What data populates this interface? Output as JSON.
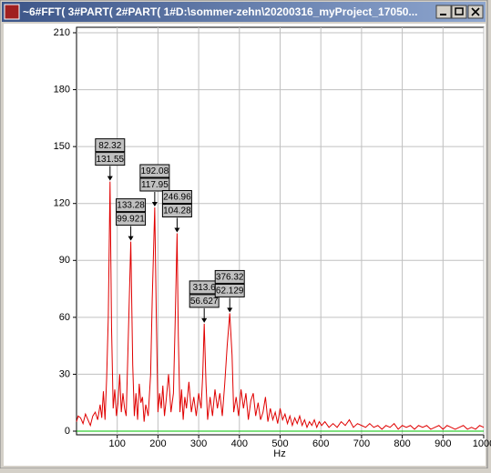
{
  "window": {
    "title": "~6#FFT( 3#PART( 2#PART( 1#D:\\sommer-zehn\\20200316_myProject_17050..."
  },
  "chart_data": {
    "type": "line",
    "x_label": "Hz",
    "x": [
      0,
      4,
      10,
      16,
      22,
      28,
      34,
      40,
      46,
      52,
      58,
      62,
      66,
      70,
      74,
      78,
      82.32,
      86,
      90,
      94,
      98,
      102,
      106,
      110,
      114,
      118,
      122,
      126,
      133.28,
      138,
      142,
      146,
      150,
      154,
      158,
      162,
      166,
      170,
      176,
      182,
      186,
      192.08,
      196,
      200,
      204,
      208,
      212,
      216,
      220,
      226,
      232,
      238,
      242,
      246.96,
      250,
      254,
      258,
      262,
      266,
      270,
      276,
      282,
      288,
      294,
      300,
      306,
      310,
      313.6,
      318,
      322,
      328,
      334,
      340,
      346,
      352,
      358,
      364,
      370,
      376.32,
      382,
      386,
      392,
      398,
      404,
      410,
      416,
      422,
      428,
      434,
      440,
      446,
      452,
      458,
      464,
      470,
      476,
      482,
      488,
      494,
      500,
      506,
      512,
      518,
      524,
      530,
      536,
      542,
      548,
      554,
      560,
      566,
      572,
      578,
      584,
      590,
      596,
      602,
      610,
      620,
      630,
      640,
      650,
      660,
      670,
      680,
      690,
      700,
      710,
      720,
      730,
      740,
      750,
      760,
      770,
      780,
      790,
      800,
      810,
      820,
      830,
      840,
      850,
      860,
      870,
      880,
      890,
      900,
      910,
      920,
      930,
      940,
      950,
      960,
      970,
      980,
      990,
      1000
    ],
    "series": [
      {
        "color": "#e00000",
        "values": [
          5,
          8,
          7,
          4,
          9,
          6,
          3,
          8,
          10,
          6,
          14,
          7,
          21,
          6,
          28,
          60,
          131.55,
          55,
          12,
          22,
          8,
          15,
          30,
          10,
          20,
          12,
          8,
          40,
          99.921,
          35,
          8,
          20,
          6,
          25,
          15,
          18,
          5,
          14,
          8,
          30,
          70,
          117.95,
          60,
          10,
          20,
          12,
          24,
          8,
          16,
          30,
          10,
          20,
          55,
          104.28,
          50,
          10,
          22,
          6,
          18,
          12,
          26,
          10,
          18,
          8,
          20,
          12,
          30,
          56.627,
          25,
          6,
          18,
          8,
          22,
          12,
          20,
          8,
          25,
          45,
          62.129,
          40,
          10,
          18,
          8,
          22,
          12,
          20,
          6,
          16,
          20,
          8,
          15,
          6,
          10,
          18,
          5,
          12,
          6,
          10,
          4,
          12,
          6,
          9,
          4,
          8,
          3,
          7,
          4,
          8,
          3,
          6,
          2,
          5,
          3,
          6,
          2,
          5,
          3,
          5,
          2,
          4,
          2,
          5,
          3,
          6,
          2,
          4,
          3,
          2,
          4,
          2,
          3,
          1,
          3,
          2,
          4,
          1,
          3,
          2,
          3,
          1,
          3,
          2,
          3,
          1,
          2,
          3,
          1,
          3,
          2,
          1,
          2,
          3,
          1,
          2,
          1,
          3,
          2
        ]
      }
    ],
    "xlim": [
      0,
      1000
    ],
    "xticks": [
      100,
      200,
      300,
      400,
      500,
      600,
      700,
      800,
      900,
      1000
    ],
    "ylim": [
      0,
      210
    ],
    "yticks": [
      0,
      30,
      60,
      90,
      120,
      150,
      180,
      210
    ],
    "grid": true,
    "baseline_color": "#00c000",
    "peaks": [
      {
        "x": 82.32,
        "y": 131.55
      },
      {
        "x": 133.28,
        "y": 99.921
      },
      {
        "x": 192.08,
        "y": 117.95
      },
      {
        "x": 246.96,
        "y": 104.28
      },
      {
        "x": 313.6,
        "y": 56.627
      },
      {
        "x": 376.32,
        "y": 62.129
      }
    ]
  }
}
